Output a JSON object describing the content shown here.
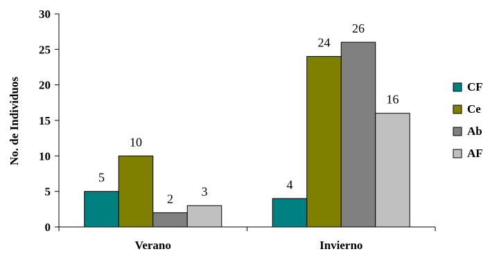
{
  "chart_data": {
    "type": "bar",
    "categories": [
      "Verano",
      "Invierno"
    ],
    "series": [
      {
        "name": "CF",
        "values": [
          5,
          4
        ],
        "color": "#008080"
      },
      {
        "name": "Ce",
        "values": [
          10,
          24
        ],
        "color": "#808000"
      },
      {
        "name": "Ab",
        "values": [
          2,
          26
        ],
        "color": "#808080"
      },
      {
        "name": "AF",
        "values": [
          3,
          16
        ],
        "color": "#C0C0C0"
      }
    ],
    "ylabel": "No. de Individuos",
    "ylim": [
      0,
      30
    ],
    "yticks": [
      0,
      5,
      10,
      15,
      20,
      25,
      30
    ],
    "grid": false,
    "legend": "right",
    "data_labels": true
  }
}
